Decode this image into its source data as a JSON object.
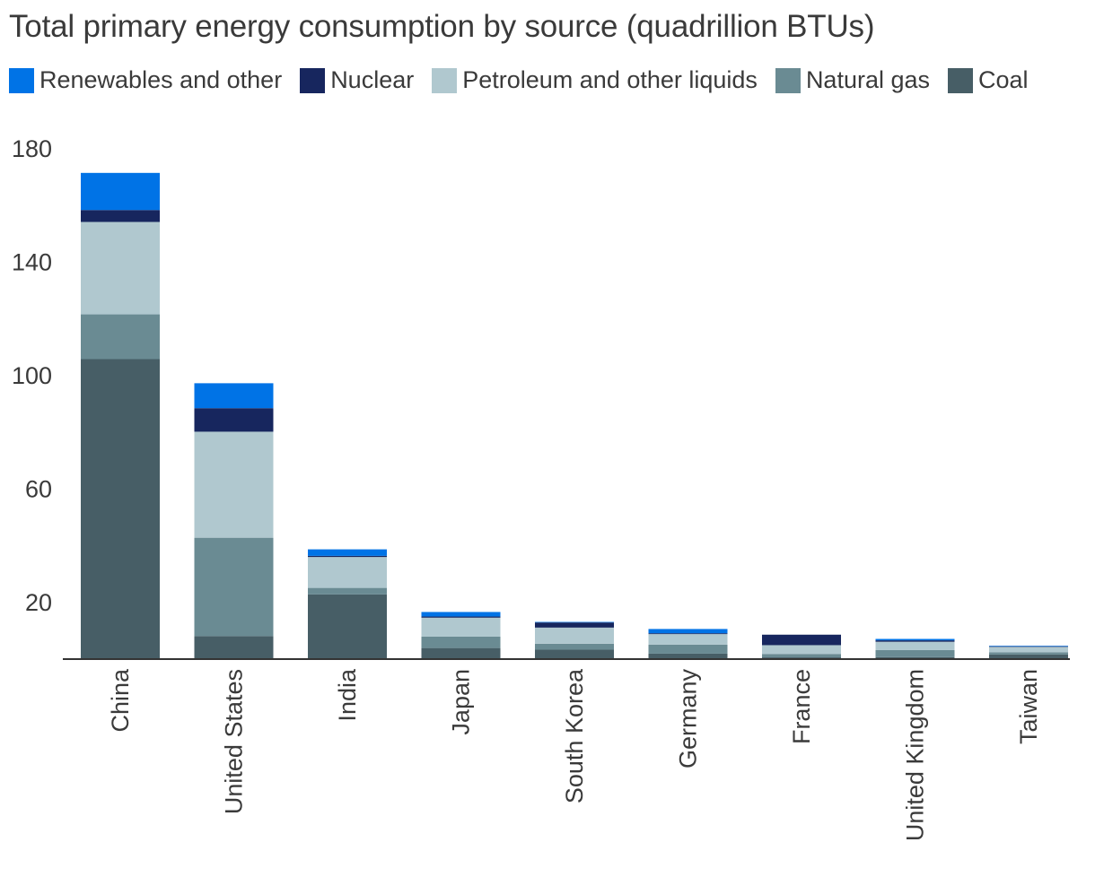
{
  "chart_data": {
    "type": "bar",
    "stacked": true,
    "title": "Total primary energy consumption by source (quadrillion BTUs)",
    "xlabel": "",
    "ylabel": "",
    "ylim": [
      0,
      180
    ],
    "yticks": [
      20,
      60,
      100,
      140,
      180
    ],
    "grid": false,
    "legend_position": "top",
    "categories": [
      "China",
      "United States",
      "India",
      "Japan",
      "South Korea",
      "Germany",
      "France",
      "United Kingdom",
      "Taiwan"
    ],
    "series": [
      {
        "name": "Coal",
        "color": "#475e66",
        "values": [
          105.5,
          7.8,
          22.5,
          3.6,
          3.0,
          1.6,
          0.3,
          0.4,
          1.3
        ]
      },
      {
        "name": "Natural gas",
        "color": "#6a8b93",
        "values": [
          15.8,
          34.7,
          2.3,
          4.0,
          2.1,
          3.2,
          1.2,
          2.5,
          0.8
        ]
      },
      {
        "name": "Petroleum and other liquids",
        "color": "#b0c8cf",
        "values": [
          32.6,
          37.4,
          10.9,
          6.7,
          5.7,
          3.7,
          3.1,
          2.9,
          1.9
        ]
      },
      {
        "name": "Nuclear",
        "color": "#17265e",
        "values": [
          4.2,
          8.3,
          0.4,
          0.4,
          1.8,
          0.3,
          3.7,
          0.5,
          0.2
        ]
      },
      {
        "name": "Renewables and other",
        "color": "#0073e6",
        "values": [
          13.1,
          8.8,
          2.3,
          1.6,
          0.2,
          1.5,
          0.0,
          0.5,
          0.2
        ]
      }
    ]
  },
  "legend_order": [
    "Renewables and other",
    "Nuclear",
    "Petroleum and other liquids",
    "Natural gas",
    "Coal"
  ]
}
